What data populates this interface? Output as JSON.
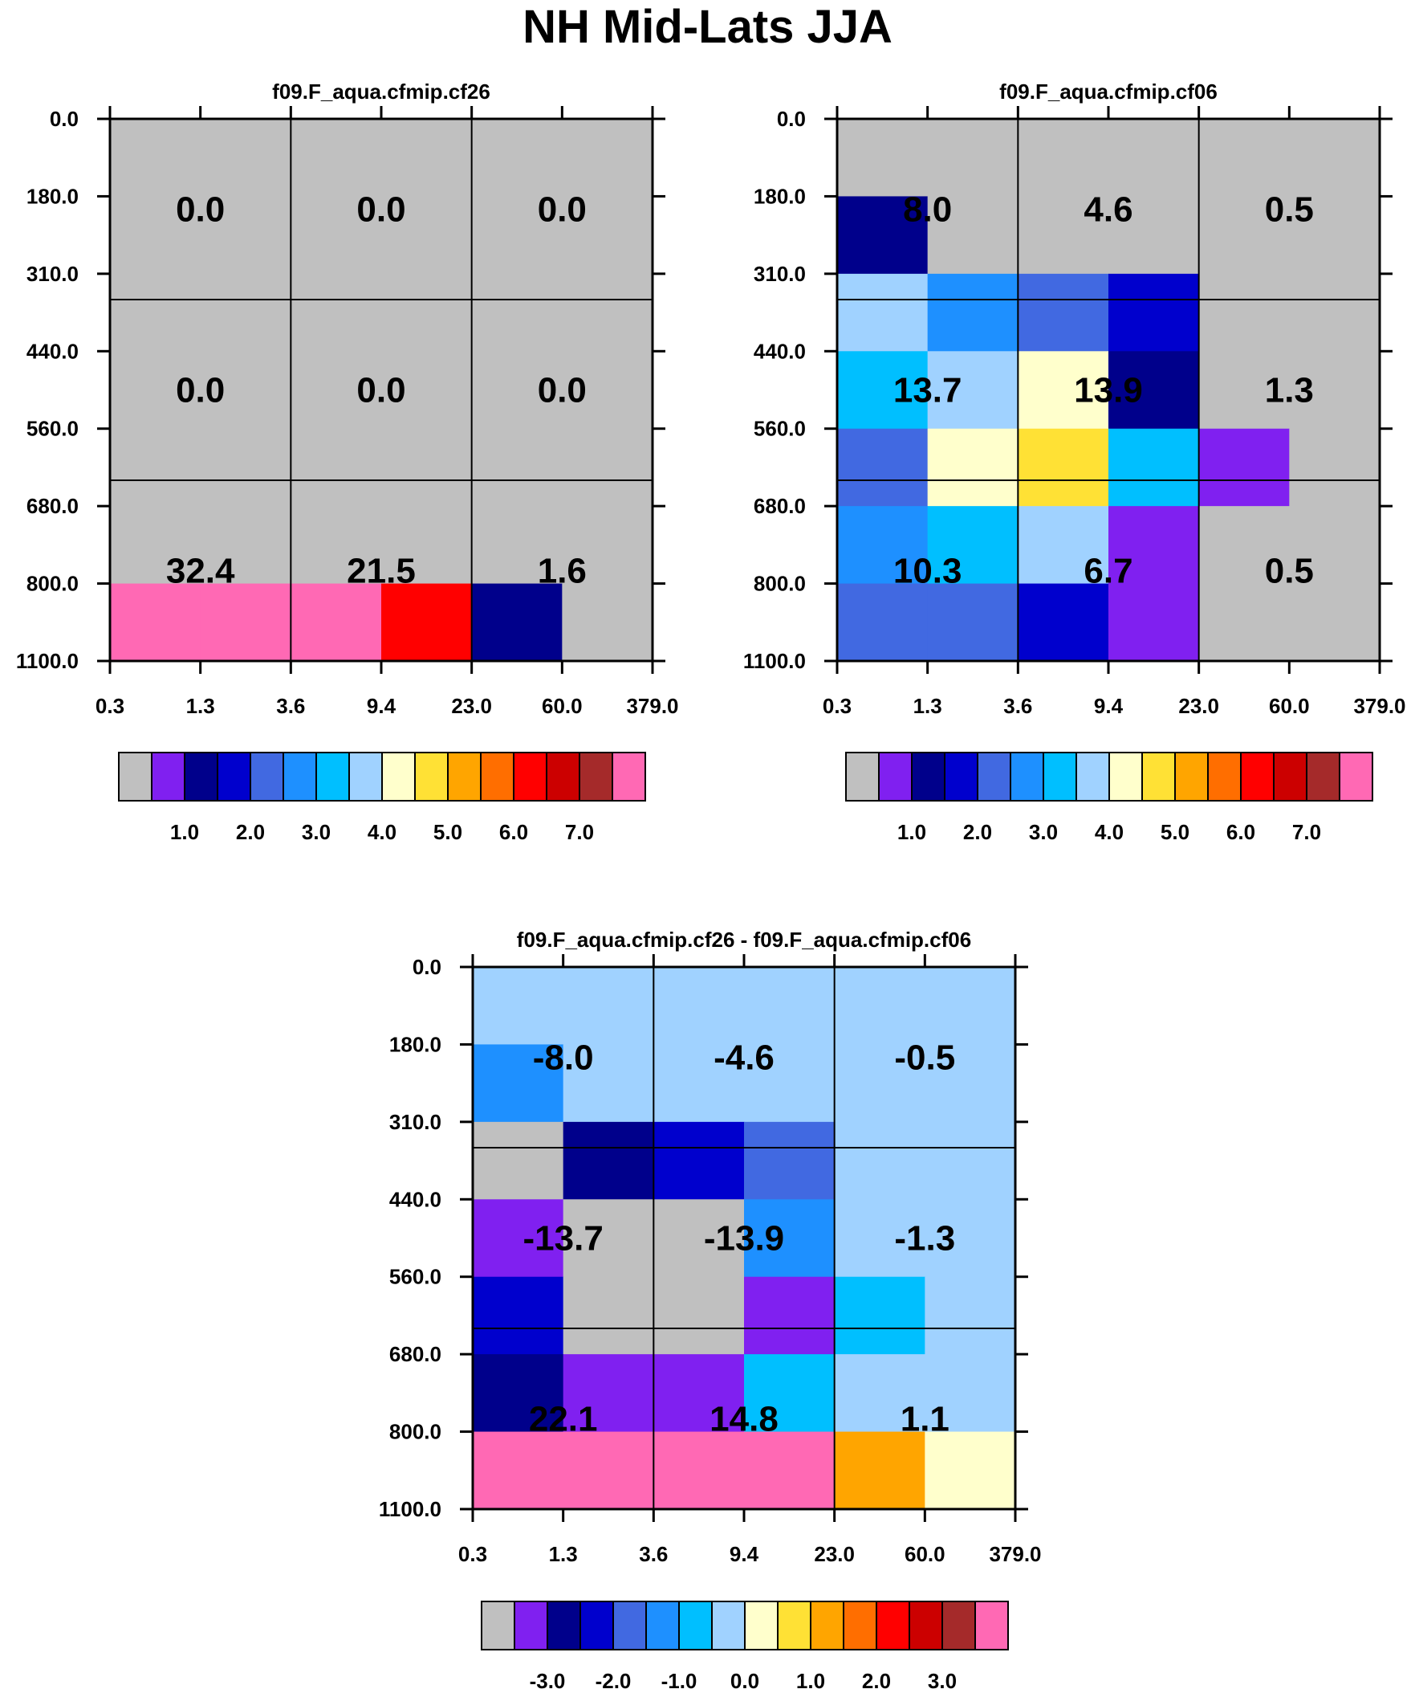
{
  "title": "NH Mid-Lats JJA",
  "palette": [
    "#c0c0c0",
    "#8020f0",
    "#00008b",
    "#0000cd",
    "#4169e1",
    "#1e90ff",
    "#00bfff",
    "#a0d2ff",
    "#ffffcc",
    "#ffe135",
    "#ffa500",
    "#ff6e00",
    "#ff0000",
    "#cc0000",
    "#a52a2a",
    "#ff69b4"
  ],
  "chart_data": [
    {
      "type": "heatmap",
      "title": "f09.F_aqua.cfmip.cf26",
      "x_ticks": [
        "0.3",
        "1.3",
        "3.6",
        "9.4",
        "23.0",
        "60.0",
        "379.0"
      ],
      "y_ticks": [
        "0.0",
        "180.0",
        "310.0",
        "440.0",
        "560.0",
        "680.0",
        "800.0",
        "1100.0"
      ],
      "grid_color_index": [
        [
          0,
          0,
          0,
          0,
          0,
          0
        ],
        [
          0,
          0,
          0,
          0,
          0,
          0
        ],
        [
          0,
          0,
          0,
          0,
          0,
          0
        ],
        [
          0,
          0,
          0,
          0,
          0,
          0
        ],
        [
          0,
          0,
          0,
          0,
          0,
          0
        ],
        [
          0,
          0,
          0,
          0,
          0,
          0
        ],
        [
          15,
          15,
          15,
          12,
          2,
          0
        ]
      ],
      "box_values": [
        [
          "0.0",
          "0.0",
          "0.0"
        ],
        [
          "0.0",
          "0.0",
          "0.0"
        ],
        [
          "32.4",
          "21.5",
          "1.6"
        ]
      ],
      "colorbar_labels": [
        "1.0",
        "2.0",
        "3.0",
        "4.0",
        "5.0",
        "6.0",
        "7.0"
      ]
    },
    {
      "type": "heatmap",
      "title": "f09.F_aqua.cfmip.cf06",
      "x_ticks": [
        "0.3",
        "1.3",
        "3.6",
        "9.4",
        "23.0",
        "60.0",
        "379.0"
      ],
      "y_ticks": [
        "0.0",
        "180.0",
        "310.0",
        "440.0",
        "560.0",
        "680.0",
        "800.0",
        "1100.0"
      ],
      "grid_color_index": [
        [
          0,
          0,
          0,
          0,
          0,
          0
        ],
        [
          2,
          0,
          0,
          0,
          0,
          0
        ],
        [
          7,
          5,
          4,
          3,
          0,
          0
        ],
        [
          6,
          7,
          8,
          2,
          0,
          0
        ],
        [
          4,
          8,
          9,
          6,
          1,
          0
        ],
        [
          5,
          6,
          7,
          1,
          0,
          0
        ],
        [
          4,
          4,
          3,
          1,
          0,
          0
        ]
      ],
      "box_values": [
        [
          "8.0",
          "4.6",
          "0.5"
        ],
        [
          "13.7",
          "13.9",
          "1.3"
        ],
        [
          "10.3",
          "6.7",
          "0.5"
        ]
      ],
      "colorbar_labels": [
        "1.0",
        "2.0",
        "3.0",
        "4.0",
        "5.0",
        "6.0",
        "7.0"
      ]
    },
    {
      "type": "heatmap",
      "title": "f09.F_aqua.cfmip.cf26 - f09.F_aqua.cfmip.cf06",
      "x_ticks": [
        "0.3",
        "1.3",
        "3.6",
        "9.4",
        "23.0",
        "60.0",
        "379.0"
      ],
      "y_ticks": [
        "0.0",
        "180.0",
        "310.0",
        "440.0",
        "560.0",
        "680.0",
        "800.0",
        "1100.0"
      ],
      "grid_color_index": [
        [
          7,
          7,
          7,
          7,
          7,
          7
        ],
        [
          5,
          7,
          7,
          7,
          7,
          7
        ],
        [
          0,
          2,
          3,
          4,
          7,
          7
        ],
        [
          1,
          0,
          0,
          5,
          7,
          7
        ],
        [
          3,
          0,
          0,
          1,
          6,
          7
        ],
        [
          2,
          1,
          1,
          6,
          7,
          7
        ],
        [
          15,
          15,
          15,
          15,
          10,
          8
        ]
      ],
      "box_values": [
        [
          "-8.0",
          "-4.6",
          "-0.5"
        ],
        [
          "-13.7",
          "-13.9",
          "-1.3"
        ],
        [
          "22.1",
          "14.8",
          "1.1"
        ]
      ],
      "colorbar_labels": [
        "-3.0",
        "-2.0",
        "-1.0",
        "0.0",
        "1.0",
        "2.0",
        "3.0"
      ]
    }
  ]
}
